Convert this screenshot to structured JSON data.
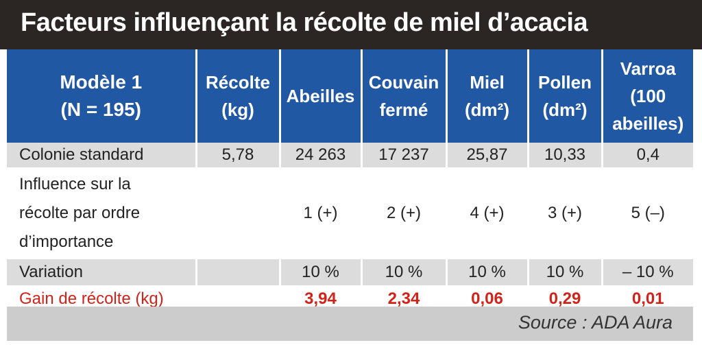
{
  "title": "Facteurs influençant la récolte de miel d’acacia",
  "header": {
    "model_line1": "Modèle 1",
    "model_line2": "(N = 195)",
    "recolte_line1": "Récolte",
    "recolte_line2": "(kg)",
    "abeilles": "Abeilles",
    "couvain_line1": "Couvain",
    "couvain_line2": "fermé",
    "miel_line1": "Miel",
    "miel_line2": "(dm²)",
    "pollen_line1": "Pollen",
    "pollen_line2": "(dm²)",
    "varroa_line1": "Varroa",
    "varroa_line2": "(100",
    "varroa_line3": "abeilles)"
  },
  "rows": {
    "standard": {
      "label": "Colonie standard",
      "recolte": "5,78",
      "abeilles": "24 263",
      "couvain": "17 237",
      "miel": "25,87",
      "pollen": "10,33",
      "varroa": "0,4"
    },
    "influence": {
      "label_line1": "Influence sur la",
      "label_line2": "récolte par ordre",
      "label_line3": "d’importance",
      "recolte": "",
      "abeilles": "1 (+)",
      "couvain": "2 (+)",
      "miel": "4 (+)",
      "pollen": "3 (+)",
      "varroa": "5 (–)"
    },
    "variation": {
      "label": "Variation",
      "recolte": "",
      "abeilles": "10 %",
      "couvain": "10 %",
      "miel": "10 %",
      "pollen": "10 %",
      "varroa": "– 10 %"
    },
    "gain": {
      "label": "Gain de récolte (kg)",
      "recolte": "",
      "abeilles": "3,94",
      "couvain": "2,34",
      "miel": "0,06",
      "pollen": "0,29",
      "varroa": "0,01"
    }
  },
  "source": "Source : ADA Aura",
  "colors": {
    "title_bg": "#2b2623",
    "header_bg": "#2058a3",
    "grey_row": "#dcdcdc",
    "gain_text": "#d2231a",
    "source_bg": "#cccccc"
  }
}
